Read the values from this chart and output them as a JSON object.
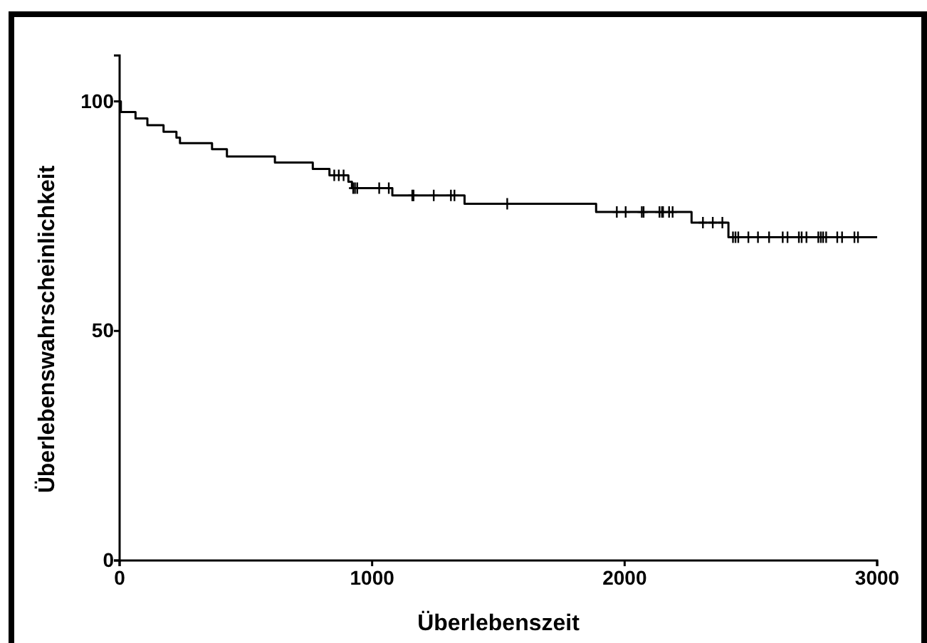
{
  "chart_data": {
    "type": "step",
    "xlabel": "Überlebenszeit",
    "ylabel": "Überlebenswahrscheinlichkeit",
    "xlim": [
      0,
      3000
    ],
    "ylim": [
      0,
      110
    ],
    "xticks": [
      0,
      1000,
      2000,
      3000
    ],
    "yticks": [
      0,
      50,
      100
    ],
    "grid": false,
    "series": [
      {
        "color": "#000000",
        "marker": "none",
        "x": [
          0,
          5,
          63,
          110,
          174,
          225,
          239,
          366,
          425,
          615,
          765,
          831,
          906,
          920,
          1080,
          1366,
          1887,
          2265,
          2411,
          3000
        ],
        "values": [
          100,
          97.7,
          96.3,
          94.8,
          93.4,
          92.1,
          90.9,
          89.6,
          88.0,
          86.7,
          85.3,
          83.9,
          82.5,
          81.1,
          79.5,
          77.7,
          75.9,
          73.6,
          70.4,
          70.4
        ]
      },
      {
        "type": "scatter",
        "color": "#000000",
        "marker": "cross",
        "x": [
          850,
          868,
          887,
          925,
          932,
          941,
          1028,
          1066,
          1159,
          1164,
          1244,
          1312,
          1326,
          1535,
          1969,
          2004,
          2068,
          2075,
          2138,
          2148,
          2152,
          2176,
          2190,
          2310,
          2349,
          2387,
          2429,
          2439,
          2450,
          2490,
          2528,
          2572,
          2626,
          2645,
          2690,
          2701,
          2720,
          2767,
          2777,
          2786,
          2798,
          2842,
          2861,
          2910,
          2924
        ],
        "values": [
          83.9,
          83.9,
          83.9,
          81.1,
          81.1,
          81.1,
          81.1,
          81.1,
          79.5,
          79.5,
          79.5,
          79.5,
          79.5,
          77.7,
          75.9,
          75.9,
          75.9,
          75.9,
          75.9,
          75.9,
          75.9,
          75.9,
          75.9,
          73.6,
          73.6,
          73.6,
          70.4,
          70.4,
          70.4,
          70.4,
          70.4,
          70.4,
          70.4,
          70.4,
          70.4,
          70.4,
          70.4,
          70.4,
          70.4,
          70.4,
          70.4,
          70.4,
          70.4,
          70.4,
          70.4
        ]
      }
    ]
  }
}
